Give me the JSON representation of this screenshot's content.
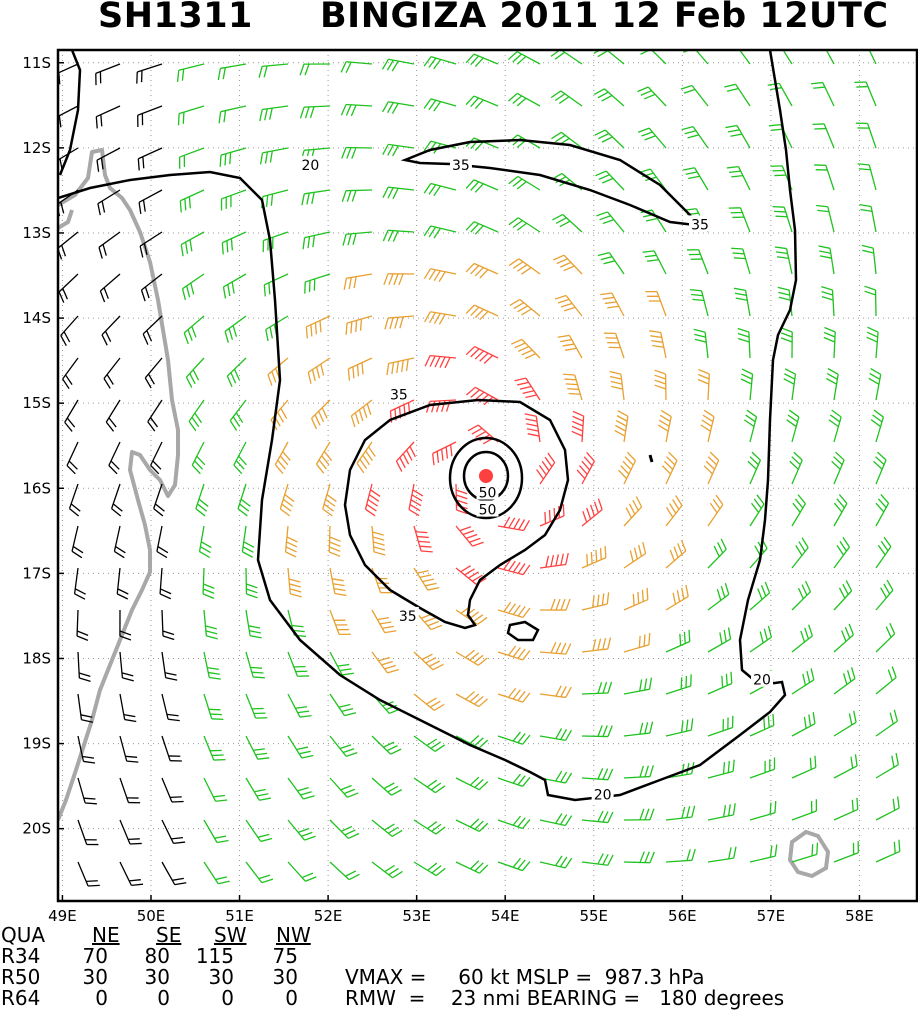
{
  "header": {
    "storm_id": "SH1311",
    "title": "BINGIZA 2011 12 Feb 12UTC"
  },
  "chart_data": {
    "type": "wind_barb_map",
    "x_ticks": [
      "49E",
      "50E",
      "51E",
      "52E",
      "53E",
      "54E",
      "55E",
      "56E",
      "57E",
      "58E"
    ],
    "y_ticks": [
      "11S",
      "12S",
      "13S",
      "14S",
      "15S",
      "16S",
      "17S",
      "18S",
      "19S",
      "20S"
    ],
    "xlim": [
      48.95,
      58.65
    ],
    "ylim": [
      -20.85,
      -10.85
    ],
    "grid": "dotted",
    "center": {
      "lon": 53.8,
      "lat": -15.8
    },
    "contour_labels": [
      {
        "value": "20",
        "lon": 51.8,
        "lat": -12.2
      },
      {
        "value": "35",
        "lon": 53.5,
        "lat": -12.2
      },
      {
        "value": "35",
        "lon": 56.2,
        "lat": -12.9
      },
      {
        "value": "35",
        "lon": 52.8,
        "lat": -14.9
      },
      {
        "value": "50",
        "lon": 53.8,
        "lat": -16.05
      },
      {
        "value": "50",
        "lon": 53.8,
        "lat": -16.25
      },
      {
        "value": "35",
        "lon": 52.9,
        "lat": -17.5
      },
      {
        "value": "20",
        "lon": 56.9,
        "lat": -18.25
      },
      {
        "value": "20",
        "lon": 55.1,
        "lat": -19.6
      }
    ],
    "colors": {
      "weak": "#000000",
      "gale": "#1fc21f",
      "storm": "#e8a030",
      "hurricane": "#ff4040",
      "coast": "#a8a8a8"
    }
  },
  "footer": {
    "qua_label": "QUA",
    "quadrants": [
      "NE",
      "SE",
      "SW",
      "NW"
    ],
    "rows": [
      {
        "label": "R34",
        "values": [
          "70",
          "80",
          "115",
          "75"
        ]
      },
      {
        "label": "R50",
        "values": [
          "30",
          "30",
          "30",
          "30"
        ]
      },
      {
        "label": "R64",
        "values": [
          "0",
          "0",
          "0",
          "0"
        ]
      }
    ],
    "vmax_text": "VMAX =     60 kt MSLP =  987.3 hPa",
    "rmw_text": "RMW  =    23 nmi BEARING =   180 degrees"
  }
}
